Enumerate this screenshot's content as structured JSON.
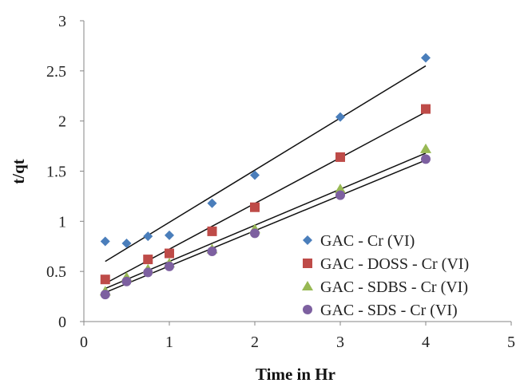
{
  "chart_data": {
    "type": "scatter",
    "title": "",
    "xlabel": "Time in Hr",
    "ylabel": "t/qt",
    "xlim": [
      0,
      5
    ],
    "ylim": [
      0,
      3
    ],
    "xticks": [
      "0",
      "1",
      "2",
      "3",
      "4",
      "5"
    ],
    "yticks": [
      "0",
      "0.5",
      "1",
      "1.5",
      "2",
      "2.5",
      "3"
    ],
    "grid": false,
    "legend_position": "bottom-right",
    "trendlines": true,
    "series": [
      {
        "name": "GAC - Cr (VI)",
        "marker": "diamond",
        "color": "#4a7ebb",
        "x": [
          0.25,
          0.5,
          0.75,
          1,
          1.5,
          2,
          3,
          4
        ],
        "y": [
          0.8,
          0.78,
          0.85,
          0.86,
          1.18,
          1.46,
          2.04,
          2.63
        ],
        "fit": [
          [
            0.25,
            0.6
          ],
          [
            4,
            2.55
          ]
        ]
      },
      {
        "name": "GAC - DOSS - Cr (VI)",
        "marker": "square",
        "color": "#be4b48",
        "x": [
          0.25,
          0.75,
          1,
          1.5,
          2,
          3,
          4
        ],
        "y": [
          0.42,
          0.62,
          0.68,
          0.9,
          1.14,
          1.64,
          2.12
        ],
        "fit": [
          [
            0.25,
            0.38
          ],
          [
            4,
            2.09
          ]
        ]
      },
      {
        "name": "GAC - SDBS - Cr (VI)",
        "marker": "triangle",
        "color": "#98b954",
        "x": [
          0.25,
          0.5,
          0.75,
          1,
          1.5,
          2,
          3,
          4
        ],
        "y": [
          0.3,
          0.44,
          0.52,
          0.58,
          0.72,
          0.92,
          1.32,
          1.72
        ],
        "fit": [
          [
            0.25,
            0.33
          ],
          [
            4,
            1.68
          ]
        ]
      },
      {
        "name": "GAC - SDS - Cr (VI)",
        "marker": "circle",
        "color": "#7d60a0",
        "x": [
          0.25,
          0.5,
          0.75,
          1,
          1.5,
          2,
          3,
          4
        ],
        "y": [
          0.27,
          0.4,
          0.49,
          0.55,
          0.7,
          0.88,
          1.26,
          1.62
        ],
        "fit": [
          [
            0.25,
            0.29
          ],
          [
            4,
            1.61
          ]
        ]
      }
    ]
  }
}
